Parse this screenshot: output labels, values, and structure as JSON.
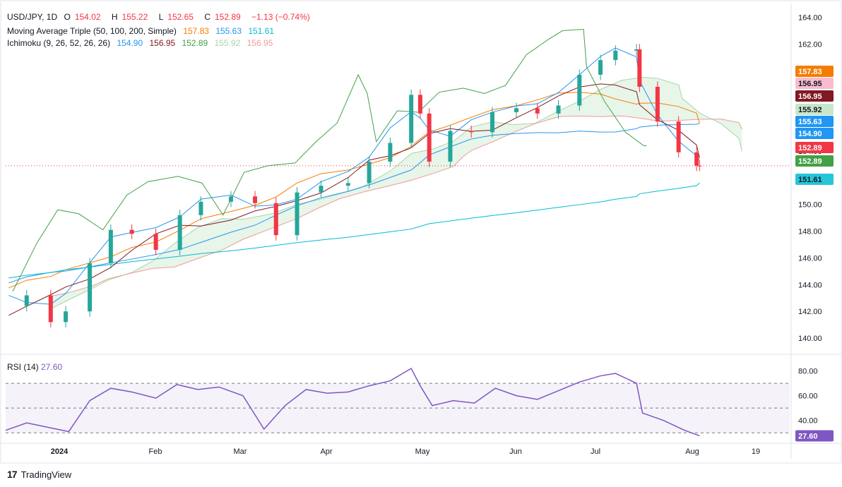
{
  "header": {
    "symbol": "USD/JPY, 1D",
    "o_label": "O",
    "o": "154.02",
    "h_label": "H",
    "h": "155.22",
    "l_label": "L",
    "l": "152.65",
    "c_label": "C",
    "c": "152.89",
    "change": "−1.13 (−0.74%)",
    "up_color": "#26a69a",
    "down_color": "#f23645"
  },
  "ma_legend": {
    "label": "Moving Average Triple (50, 100, 200, Simple)",
    "v1": "157.83",
    "v2": "155.63",
    "v3": "151.61",
    "c1": "#f57c00",
    "c2": "#2196f3",
    "c3": "#00bcd4"
  },
  "ichimoku_legend": {
    "label": "Ichimoku (9, 26, 52, 26, 26)",
    "v1": "154.90",
    "v2": "156.95",
    "v3": "152.89",
    "v4": "155.92",
    "v5": "156.95",
    "c1": "#2196f3",
    "c2": "#801922",
    "c3": "#43a047",
    "c4": "#a5d6a7",
    "c5": "#ef9a9a"
  },
  "rsi_legend": {
    "label": "RSI (14)",
    "value": "27.60",
    "color": "#7e57c2"
  },
  "price_axis": {
    "labels": [
      "164.00",
      "162.00",
      "160.00",
      "158.00",
      "156.00",
      "154.00",
      "152.00",
      "150.00",
      "148.00",
      "146.00",
      "144.00",
      "142.00",
      "140.00"
    ],
    "badges": [
      {
        "text": "157.83",
        "bg": "#f57c00",
        "fg": "#ffffff"
      },
      {
        "text": "156.95",
        "bg": "#f8bbd0",
        "fg": "#131722"
      },
      {
        "text": "156.95",
        "bg": "#801922",
        "fg": "#ffffff"
      },
      {
        "text": "155.92",
        "bg": "#c8e6c9",
        "fg": "#131722"
      },
      {
        "text": "155.63",
        "bg": "#2196f3",
        "fg": "#ffffff"
      },
      {
        "text": "154.90",
        "bg": "#2196f3",
        "fg": "#ffffff"
      },
      {
        "text": "152.89",
        "bg": "#f23645",
        "fg": "#ffffff"
      },
      {
        "text": "152.89",
        "bg": "#43a047",
        "fg": "#ffffff"
      },
      {
        "text": "151.61",
        "bg": "#26c6da",
        "fg": "#131722"
      }
    ]
  },
  "rsi_axis": {
    "labels": [
      "80.00",
      "60.00",
      "40.00"
    ],
    "badge": {
      "text": "27.60",
      "bg": "#7e57c2",
      "fg": "#ffffff"
    }
  },
  "time_axis": [
    "2024",
    "Feb",
    "Mar",
    "Apr",
    "May",
    "Jun",
    "Jul",
    "Aug",
    "19"
  ],
  "footer": {
    "brand": "TradingView"
  },
  "chart_data": [
    {
      "type": "candlestick",
      "title": "USD/JPY, 1D",
      "ylim": [
        139,
        164.5
      ],
      "last_close": 152.89,
      "x_range": [
        "2023-12-13",
        "2024-08-30"
      ],
      "series": [
        {
          "name": "Close (daily, sampled)",
          "dates": [
            "2023-12-14",
            "2023-12-20",
            "2023-12-28",
            "2024-01-02",
            "2024-01-10",
            "2024-01-17",
            "2024-01-24",
            "2024-02-01",
            "2024-02-09",
            "2024-02-16",
            "2024-02-26",
            "2024-03-05",
            "2024-03-12",
            "2024-03-19",
            "2024-03-27",
            "2024-04-05",
            "2024-04-12",
            "2024-04-19",
            "2024-04-26",
            "2024-04-29",
            "2024-05-02",
            "2024-05-09",
            "2024-05-16",
            "2024-05-23",
            "2024-05-31",
            "2024-06-07",
            "2024-06-14",
            "2024-06-21",
            "2024-06-28",
            "2024-07-03",
            "2024-07-10",
            "2024-07-11",
            "2024-07-17",
            "2024-07-24",
            "2024-07-30",
            "2024-07-31"
          ],
          "values": [
            142.4,
            143.2,
            141.2,
            142.0,
            145.6,
            148.1,
            147.8,
            146.6,
            149.2,
            150.2,
            150.6,
            150.1,
            147.7,
            150.9,
            151.4,
            151.6,
            153.2,
            154.6,
            158.2,
            156.8,
            153.2,
            155.5,
            155.4,
            156.9,
            157.2,
            156.8,
            157.4,
            159.7,
            160.8,
            161.5,
            161.6,
            158.8,
            156.2,
            153.9,
            152.9,
            152.89
          ]
        }
      ],
      "moving_averages": [
        {
          "name": "MA 50",
          "last": 157.83
        },
        {
          "name": "MA 100",
          "last": 155.63
        },
        {
          "name": "MA 200",
          "last": 151.61
        }
      ],
      "ichimoku": {
        "tenkan": 154.9,
        "kijun": 156.95,
        "chikou": 152.89,
        "senkou_a": 155.92,
        "senkou_b": 156.95
      }
    },
    {
      "type": "line",
      "title": "RSI (14)",
      "ylim": [
        25,
        90
      ],
      "bands": [
        30,
        50,
        70
      ],
      "series": [
        {
          "name": "RSI (14)",
          "dates": [
            "2023-12-13",
            "2023-12-20",
            "2023-12-28",
            "2024-01-03",
            "2024-01-10",
            "2024-01-17",
            "2024-01-24",
            "2024-02-01",
            "2024-02-08",
            "2024-02-15",
            "2024-02-22",
            "2024-03-01",
            "2024-03-08",
            "2024-03-15",
            "2024-03-22",
            "2024-03-29",
            "2024-04-05",
            "2024-04-12",
            "2024-04-19",
            "2024-04-26",
            "2024-04-29",
            "2024-05-03",
            "2024-05-10",
            "2024-05-17",
            "2024-05-24",
            "2024-05-31",
            "2024-06-07",
            "2024-06-14",
            "2024-06-21",
            "2024-06-28",
            "2024-07-03",
            "2024-07-10",
            "2024-07-12",
            "2024-07-19",
            "2024-07-26",
            "2024-07-31"
          ],
          "values": [
            32,
            38,
            34,
            31,
            56,
            66,
            63,
            58,
            69,
            65,
            67,
            60,
            33,
            52,
            65,
            62,
            63,
            68,
            72,
            82,
            68,
            52,
            56,
            54,
            66,
            60,
            57,
            64,
            71,
            76,
            78,
            70,
            46,
            40,
            32,
            27.6
          ]
        }
      ]
    }
  ]
}
